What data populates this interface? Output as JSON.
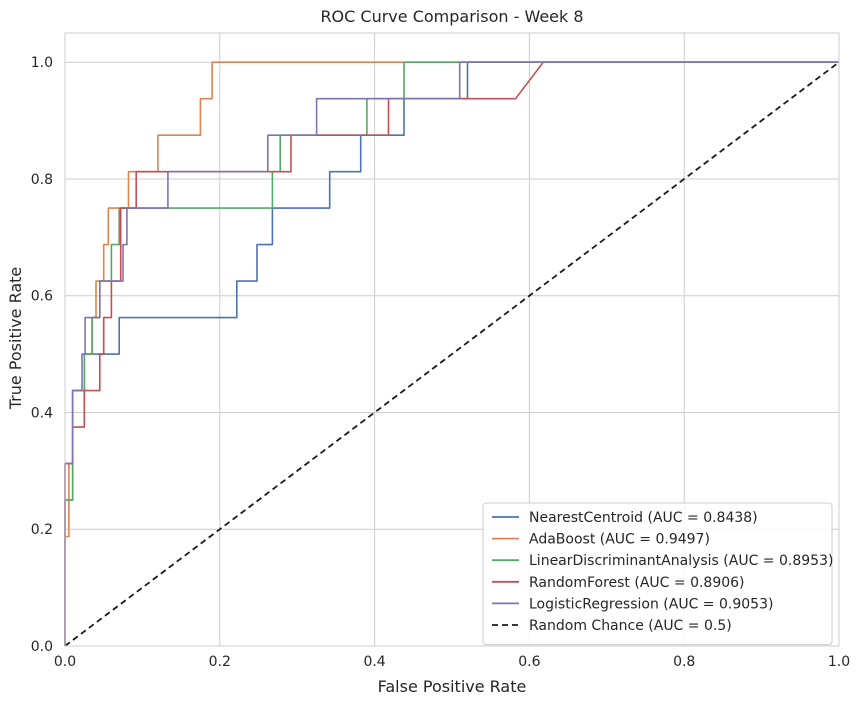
{
  "chart_data": {
    "type": "line",
    "title": "ROC Curve Comparison - Week 8",
    "xlabel": "False Positive Rate",
    "ylabel": "True Positive Rate",
    "xlim": [
      0,
      1
    ],
    "ylim": [
      0,
      1.05
    ],
    "xticks": [
      "0.0",
      "0.2",
      "0.4",
      "0.6",
      "0.8",
      "1.0"
    ],
    "yticks": [
      "0.0",
      "0.2",
      "0.4",
      "0.6",
      "0.8",
      "1.0"
    ],
    "grid": true,
    "legend_position": "lower-right",
    "series": [
      {
        "name": "NearestCentroid (AUC = 0.8438)",
        "color": "#4c72b0",
        "dash": false,
        "points": [
          [
            0,
            0
          ],
          [
            0,
            0.25
          ],
          [
            0.01,
            0.25
          ],
          [
            0.01,
            0.4375
          ],
          [
            0.025,
            0.4375
          ],
          [
            0.025,
            0.5
          ],
          [
            0.07,
            0.5
          ],
          [
            0.07,
            0.5625
          ],
          [
            0.222,
            0.5625
          ],
          [
            0.222,
            0.625
          ],
          [
            0.248,
            0.625
          ],
          [
            0.248,
            0.6875
          ],
          [
            0.268,
            0.6875
          ],
          [
            0.268,
            0.75
          ],
          [
            0.342,
            0.75
          ],
          [
            0.342,
            0.8125
          ],
          [
            0.382,
            0.8125
          ],
          [
            0.382,
            0.875
          ],
          [
            0.438,
            0.875
          ],
          [
            0.438,
            0.9375
          ],
          [
            0.52,
            0.9375
          ],
          [
            0.52,
            1.0
          ],
          [
            1.0,
            1.0
          ]
        ]
      },
      {
        "name": "AdaBoost (AUC = 0.9497)",
        "color": "#dd8452",
        "dash": false,
        "points": [
          [
            0,
            0
          ],
          [
            0,
            0.1875
          ],
          [
            0.005,
            0.1875
          ],
          [
            0.005,
            0.3125
          ],
          [
            0.01,
            0.3125
          ],
          [
            0.01,
            0.4375
          ],
          [
            0.025,
            0.4375
          ],
          [
            0.025,
            0.5
          ],
          [
            0.035,
            0.5
          ],
          [
            0.035,
            0.5625
          ],
          [
            0.04,
            0.5625
          ],
          [
            0.04,
            0.625
          ],
          [
            0.05,
            0.625
          ],
          [
            0.05,
            0.6875
          ],
          [
            0.056,
            0.6875
          ],
          [
            0.056,
            0.75
          ],
          [
            0.082,
            0.75
          ],
          [
            0.082,
            0.8125
          ],
          [
            0.12,
            0.8125
          ],
          [
            0.12,
            0.875
          ],
          [
            0.175,
            0.875
          ],
          [
            0.175,
            0.9375
          ],
          [
            0.19,
            0.9375
          ],
          [
            0.19,
            1.0
          ],
          [
            1.0,
            1.0
          ]
        ]
      },
      {
        "name": "LinearDiscriminantAnalysis (AUC = 0.8953)",
        "color": "#55a868",
        "dash": false,
        "points": [
          [
            0,
            0
          ],
          [
            0,
            0.25
          ],
          [
            0.01,
            0.25
          ],
          [
            0.01,
            0.4375
          ],
          [
            0.025,
            0.4375
          ],
          [
            0.025,
            0.5
          ],
          [
            0.035,
            0.5
          ],
          [
            0.035,
            0.5625
          ],
          [
            0.045,
            0.5625
          ],
          [
            0.045,
            0.625
          ],
          [
            0.06,
            0.625
          ],
          [
            0.06,
            0.6875
          ],
          [
            0.07,
            0.6875
          ],
          [
            0.07,
            0.75
          ],
          [
            0.268,
            0.75
          ],
          [
            0.268,
            0.8125
          ],
          [
            0.278,
            0.8125
          ],
          [
            0.278,
            0.875
          ],
          [
            0.39,
            0.875
          ],
          [
            0.39,
            0.9375
          ],
          [
            0.438,
            0.9375
          ],
          [
            0.438,
            1.0
          ],
          [
            1.0,
            1.0
          ]
        ]
      },
      {
        "name": "RandomForest (AUC = 0.8906)",
        "color": "#c44e52",
        "dash": false,
        "points": [
          [
            0,
            0
          ],
          [
            0,
            0.3125
          ],
          [
            0.01,
            0.3125
          ],
          [
            0.01,
            0.375
          ],
          [
            0.025,
            0.375
          ],
          [
            0.025,
            0.4375
          ],
          [
            0.045,
            0.4375
          ],
          [
            0.045,
            0.5
          ],
          [
            0.05,
            0.5
          ],
          [
            0.05,
            0.5625
          ],
          [
            0.06,
            0.5625
          ],
          [
            0.06,
            0.625
          ],
          [
            0.072,
            0.625
          ],
          [
            0.072,
            0.75
          ],
          [
            0.092,
            0.75
          ],
          [
            0.092,
            0.8125
          ],
          [
            0.292,
            0.8125
          ],
          [
            0.292,
            0.875
          ],
          [
            0.418,
            0.875
          ],
          [
            0.418,
            0.9375
          ],
          [
            0.582,
            0.9375
          ],
          [
            0.618,
            1.0
          ],
          [
            1.0,
            1.0
          ]
        ]
      },
      {
        "name": "LogisticRegression (AUC = 0.9053)",
        "color": "#8172b3",
        "dash": false,
        "points": [
          [
            0,
            0
          ],
          [
            0,
            0.3125
          ],
          [
            0.01,
            0.3125
          ],
          [
            0.01,
            0.4375
          ],
          [
            0.022,
            0.4375
          ],
          [
            0.022,
            0.5
          ],
          [
            0.026,
            0.5
          ],
          [
            0.026,
            0.5625
          ],
          [
            0.045,
            0.5625
          ],
          [
            0.045,
            0.625
          ],
          [
            0.075,
            0.625
          ],
          [
            0.075,
            0.6875
          ],
          [
            0.08,
            0.6875
          ],
          [
            0.08,
            0.75
          ],
          [
            0.133,
            0.75
          ],
          [
            0.133,
            0.8125
          ],
          [
            0.262,
            0.8125
          ],
          [
            0.262,
            0.875
          ],
          [
            0.325,
            0.875
          ],
          [
            0.325,
            0.9375
          ],
          [
            0.51,
            0.9375
          ],
          [
            0.51,
            1.0
          ],
          [
            1.0,
            1.0
          ]
        ]
      },
      {
        "name": "Random Chance (AUC = 0.5)",
        "color": "#1a1a1a",
        "dash": true,
        "points": [
          [
            0,
            0
          ],
          [
            1,
            1
          ]
        ]
      }
    ]
  }
}
